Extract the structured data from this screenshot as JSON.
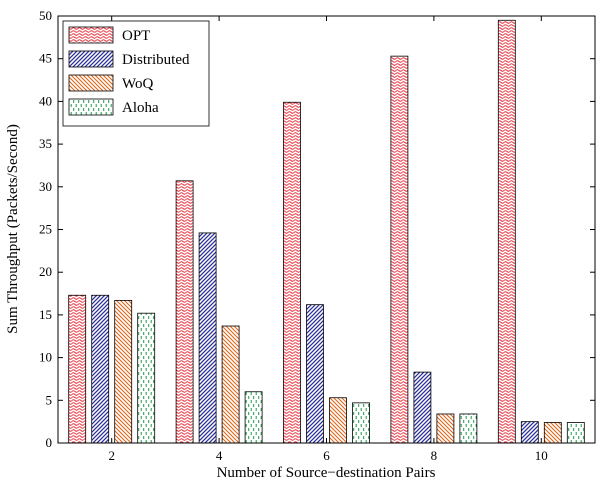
{
  "chart_data": {
    "type": "bar",
    "categories": [
      "2",
      "4",
      "6",
      "8",
      "10"
    ],
    "series": [
      {
        "name": "OPT",
        "values": [
          17.3,
          30.7,
          39.9,
          45.3,
          49.5
        ],
        "color": "#e8303a"
      },
      {
        "name": "Distributed",
        "values": [
          17.3,
          24.6,
          16.2,
          8.3,
          2.5
        ],
        "color": "#2a2f9a"
      },
      {
        "name": "WoQ",
        "values": [
          16.7,
          13.7,
          5.3,
          3.4,
          2.4
        ],
        "color": "#e2661a"
      },
      {
        "name": "Aloha",
        "values": [
          15.2,
          6.0,
          4.7,
          3.4,
          2.4
        ],
        "color": "#1c9a4a"
      }
    ],
    "xlabel": "Number of Source−destination Pairs",
    "ylabel": "Sum Throughput (Packets/Second)",
    "ylim": [
      0,
      50
    ],
    "yticks": [
      0,
      5,
      10,
      15,
      20,
      25,
      30,
      35,
      40,
      45,
      50
    ],
    "grid": false,
    "legend_position": "top-left"
  }
}
